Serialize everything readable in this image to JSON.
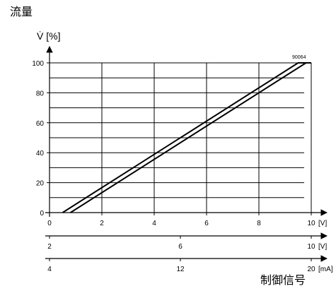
{
  "title": "流量",
  "chart_data": {
    "type": "line",
    "ylabel": "V̇ [%]",
    "xlabel": "制御信号",
    "figure_code": "90064",
    "ylim": [
      0,
      100
    ],
    "yticks": [
      0,
      20,
      40,
      60,
      80,
      100
    ],
    "grid": true,
    "x_axes": [
      {
        "unit": "[V]",
        "range": [
          0,
          10
        ],
        "ticks": [
          0,
          2,
          4,
          6,
          8,
          10
        ],
        "tick_labels": [
          "0",
          "2",
          "4",
          "6",
          "8",
          "10"
        ]
      },
      {
        "unit": "[V]",
        "range": [
          2,
          10
        ],
        "ticks": [
          2,
          6,
          10
        ],
        "tick_labels": [
          "2",
          "6",
          "10"
        ]
      },
      {
        "unit": "[mA]",
        "range": [
          4,
          20
        ],
        "ticks": [
          4,
          12,
          20
        ],
        "tick_labels": [
          "4",
          "12",
          "20"
        ]
      }
    ],
    "series": [
      {
        "x": [
          0.5,
          9.5,
          10
        ],
        "y": [
          0,
          100,
          100
        ]
      },
      {
        "x": [
          0.8,
          9.8,
          10
        ],
        "y": [
          0,
          100,
          100
        ]
      }
    ]
  }
}
